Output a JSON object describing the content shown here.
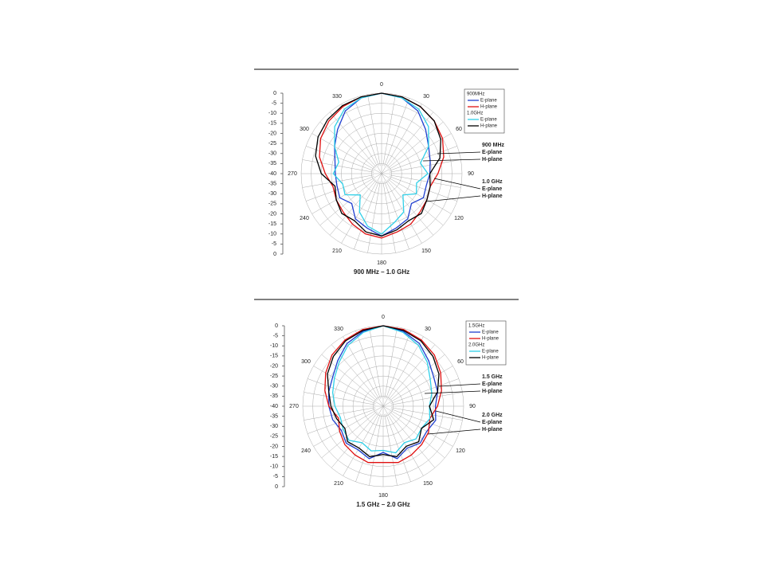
{
  "chart_data": [
    {
      "type": "polar-line",
      "caption": "900 MHz – 1.0 GHz",
      "x": [
        0,
        15,
        30,
        45,
        60,
        75,
        90,
        105,
        120,
        135,
        150,
        165,
        180,
        195,
        210,
        225,
        240,
        255,
        270,
        285,
        300,
        315,
        330,
        345
      ],
      "thetaticks": [
        0,
        30,
        60,
        90,
        120,
        150,
        180,
        210,
        240,
        270,
        300,
        330
      ],
      "rlim": [
        -40,
        0
      ],
      "rticks": [
        0,
        -5,
        -10,
        -15,
        -20,
        -25,
        -30,
        -35,
        -40
      ],
      "grid": true,
      "groups": [
        {
          "name": "900MHz",
          "series": [
            {
              "name": "E-plane",
              "color": "#1f3fd0",
              "values": [
                0,
                -1,
                -4,
                -9,
                -13,
                -15,
                -16,
                -17,
                -16,
                -19,
                -14,
                -12,
                -9,
                -12,
                -14,
                -19,
                -16,
                -17,
                -17,
                -16,
                -13,
                -9,
                -4,
                -1
              ]
            },
            {
              "name": "H-plane",
              "color": "#e01010",
              "values": [
                0,
                -0.5,
                -1.5,
                -3,
                -5,
                -8,
                -12,
                -15,
                -14,
                -13,
                -11,
                -10,
                -8,
                -9,
                -11,
                -13,
                -14,
                -15,
                -12,
                -8,
                -5,
                -3,
                -1.5,
                -0.5
              ]
            }
          ]
        },
        {
          "name": "1.0GHz",
          "series": [
            {
              "name": "E-plane",
              "color": "#30d0e8",
              "values": [
                0,
                -1,
                -3,
                -7,
                -13,
                -20,
                -17,
                -22,
                -20,
                -25,
                -18,
                -15,
                -10,
                -13,
                -18,
                -25,
                -19,
                -20,
                -16,
                -18,
                -13,
                -7,
                -3,
                -1
              ]
            },
            {
              "name": "H-plane",
              "color": "#000000",
              "values": [
                0,
                -0.5,
                -1.5,
                -3,
                -6,
                -10,
                -16,
                -15,
                -14,
                -12,
                -13,
                -11,
                -9,
                -10,
                -13,
                -12,
                -14,
                -16,
                -10,
                -6,
                -3.5,
                -2,
                -1,
                -0.5
              ]
            }
          ]
        }
      ],
      "annotations": [
        [
          "900 MHz",
          "E-plane",
          "H-plane"
        ],
        [
          "1.0 GHz",
          "E-plane",
          "H-plane"
        ]
      ]
    },
    {
      "type": "polar-line",
      "caption": "1.5 GHz – 2.0 GHz",
      "x": [
        0,
        15,
        30,
        45,
        60,
        75,
        90,
        105,
        120,
        135,
        150,
        165,
        180,
        195,
        210,
        225,
        240,
        255,
        270,
        285,
        300,
        315,
        330,
        345
      ],
      "thetaticks": [
        0,
        30,
        60,
        90,
        120,
        150,
        180,
        210,
        240,
        270,
        300,
        330
      ],
      "rlim": [
        -40,
        0
      ],
      "rticks": [
        0,
        -5,
        -10,
        -15,
        -20,
        -25,
        -30,
        -35,
        -40
      ],
      "grid": true,
      "groups": [
        {
          "name": "1.5GHz",
          "series": [
            {
              "name": "E-plane",
              "color": "#1f3fd0",
              "values": [
                0,
                -1.5,
                -4,
                -8,
                -11,
                -12,
                -14,
                -13,
                -15,
                -14,
                -16,
                -13,
                -17,
                -13,
                -15,
                -14,
                -16,
                -14,
                -13,
                -12,
                -11,
                -8,
                -4,
                -1.5
              ]
            },
            {
              "name": "H-plane",
              "color": "#e01010",
              "values": [
                0,
                -0.5,
                -2,
                -4,
                -7,
                -10,
                -13,
                -16,
                -14,
                -13,
                -12,
                -11,
                -12,
                -11,
                -12,
                -13,
                -15,
                -17,
                -13,
                -10,
                -7,
                -4,
                -2,
                -0.5
              ]
            }
          ]
        },
        {
          "name": "2.0GHz",
          "series": [
            {
              "name": "E-plane",
              "color": "#30d0e8",
              "values": [
                0,
                -2,
                -5,
                -9,
                -13,
                -15,
                -17,
                -16,
                -18,
                -17,
                -19,
                -16,
                -18,
                -17,
                -19,
                -16,
                -17,
                -18,
                -16,
                -14,
                -12,
                -9,
                -5,
                -2
              ]
            },
            {
              "name": "H-plane",
              "color": "#000000",
              "values": [
                0,
                -1,
                -2.5,
                -5,
                -8,
                -12,
                -17,
                -14,
                -18,
                -15,
                -17,
                -14,
                -16,
                -14,
                -16,
                -15,
                -18,
                -16,
                -14,
                -12,
                -8,
                -5,
                -2.5,
                -1
              ]
            }
          ]
        }
      ],
      "annotations": [
        [
          "1.5 GHz",
          "E-plane",
          "H-plane"
        ],
        [
          "2.0 GHz",
          "E-plane",
          "H-plane"
        ]
      ]
    }
  ]
}
